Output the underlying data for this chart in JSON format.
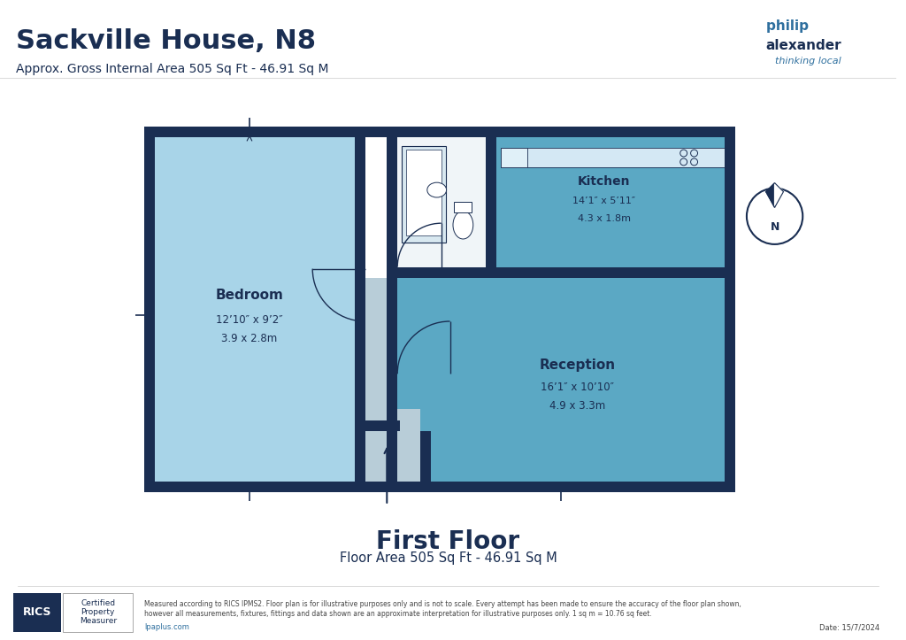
{
  "title": "Sackville House, N8",
  "subtitle": "Approx. Gross Internal Area 505 Sq Ft - 46.91 Sq M",
  "floor_title": "First Floor",
  "floor_subtitle": "Floor Area 505 Sq Ft - 46.91 Sq M",
  "footer_text": "Measured according to RICS IPMS2. Floor plan is for illustrative purposes only and is not to scale. Every attempt has been made to ensure the accuracy of the floor plan shown,\nhowever all measurements, fixtures, fittings and data shown are an approximate interpretation for illustrative purposes only. 1 sq m = 10.76 sq feet.",
  "footer_url": "lpaplus.com",
  "footer_date": "Date: 15/7/2024",
  "bg_color": "#ffffff",
  "wall_color": "#1a2e52",
  "bedroom_color": "#a8d4e8",
  "kitchen_color": "#5ba8c4",
  "reception_color": "#5ba8c4",
  "hallway_color": "#c8d8e0",
  "bathroom_color": "#ffffff",
  "rooms": {
    "bedroom": {
      "label": "Bedroom",
      "dim1": "12’10″ x 9’2″",
      "dim2": "3.9 x 2.8m"
    },
    "kitchen": {
      "label": "Kitchen",
      "dim1": "14’1″ x 5’11″",
      "dim2": "4.3 x 1.8m"
    },
    "reception": {
      "label": "Reception",
      "dim1": "16’1″ x 10’10″",
      "dim2": "4.9 x 3.3m"
    }
  },
  "dark_blue": "#1a2e52",
  "text_blue": "#1a3a5c",
  "mid_blue": "#2e6f9e"
}
